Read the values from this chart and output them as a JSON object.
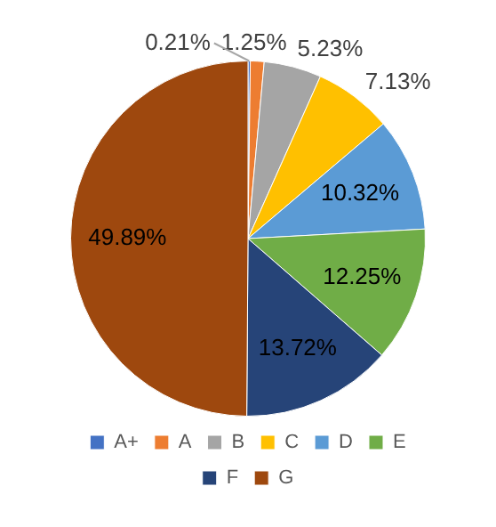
{
  "chart_data": {
    "type": "pie",
    "categories": [
      "A+",
      "A",
      "B",
      "C",
      "D",
      "E",
      "F",
      "G"
    ],
    "values": [
      0.21,
      1.25,
      5.23,
      7.13,
      10.32,
      12.25,
      13.72,
      49.89
    ],
    "colors": [
      "#4472c4",
      "#ed7d31",
      "#a5a5a5",
      "#ffc000",
      "#5b9bd5",
      "#70ad47",
      "#264478",
      "#9e480e"
    ],
    "value_labels": [
      "0.21%",
      "1.25%",
      "5.23%",
      "7.13%",
      "10.32%",
      "12.25%",
      "13.72%",
      "49.89%"
    ],
    "legend": "bottom"
  }
}
